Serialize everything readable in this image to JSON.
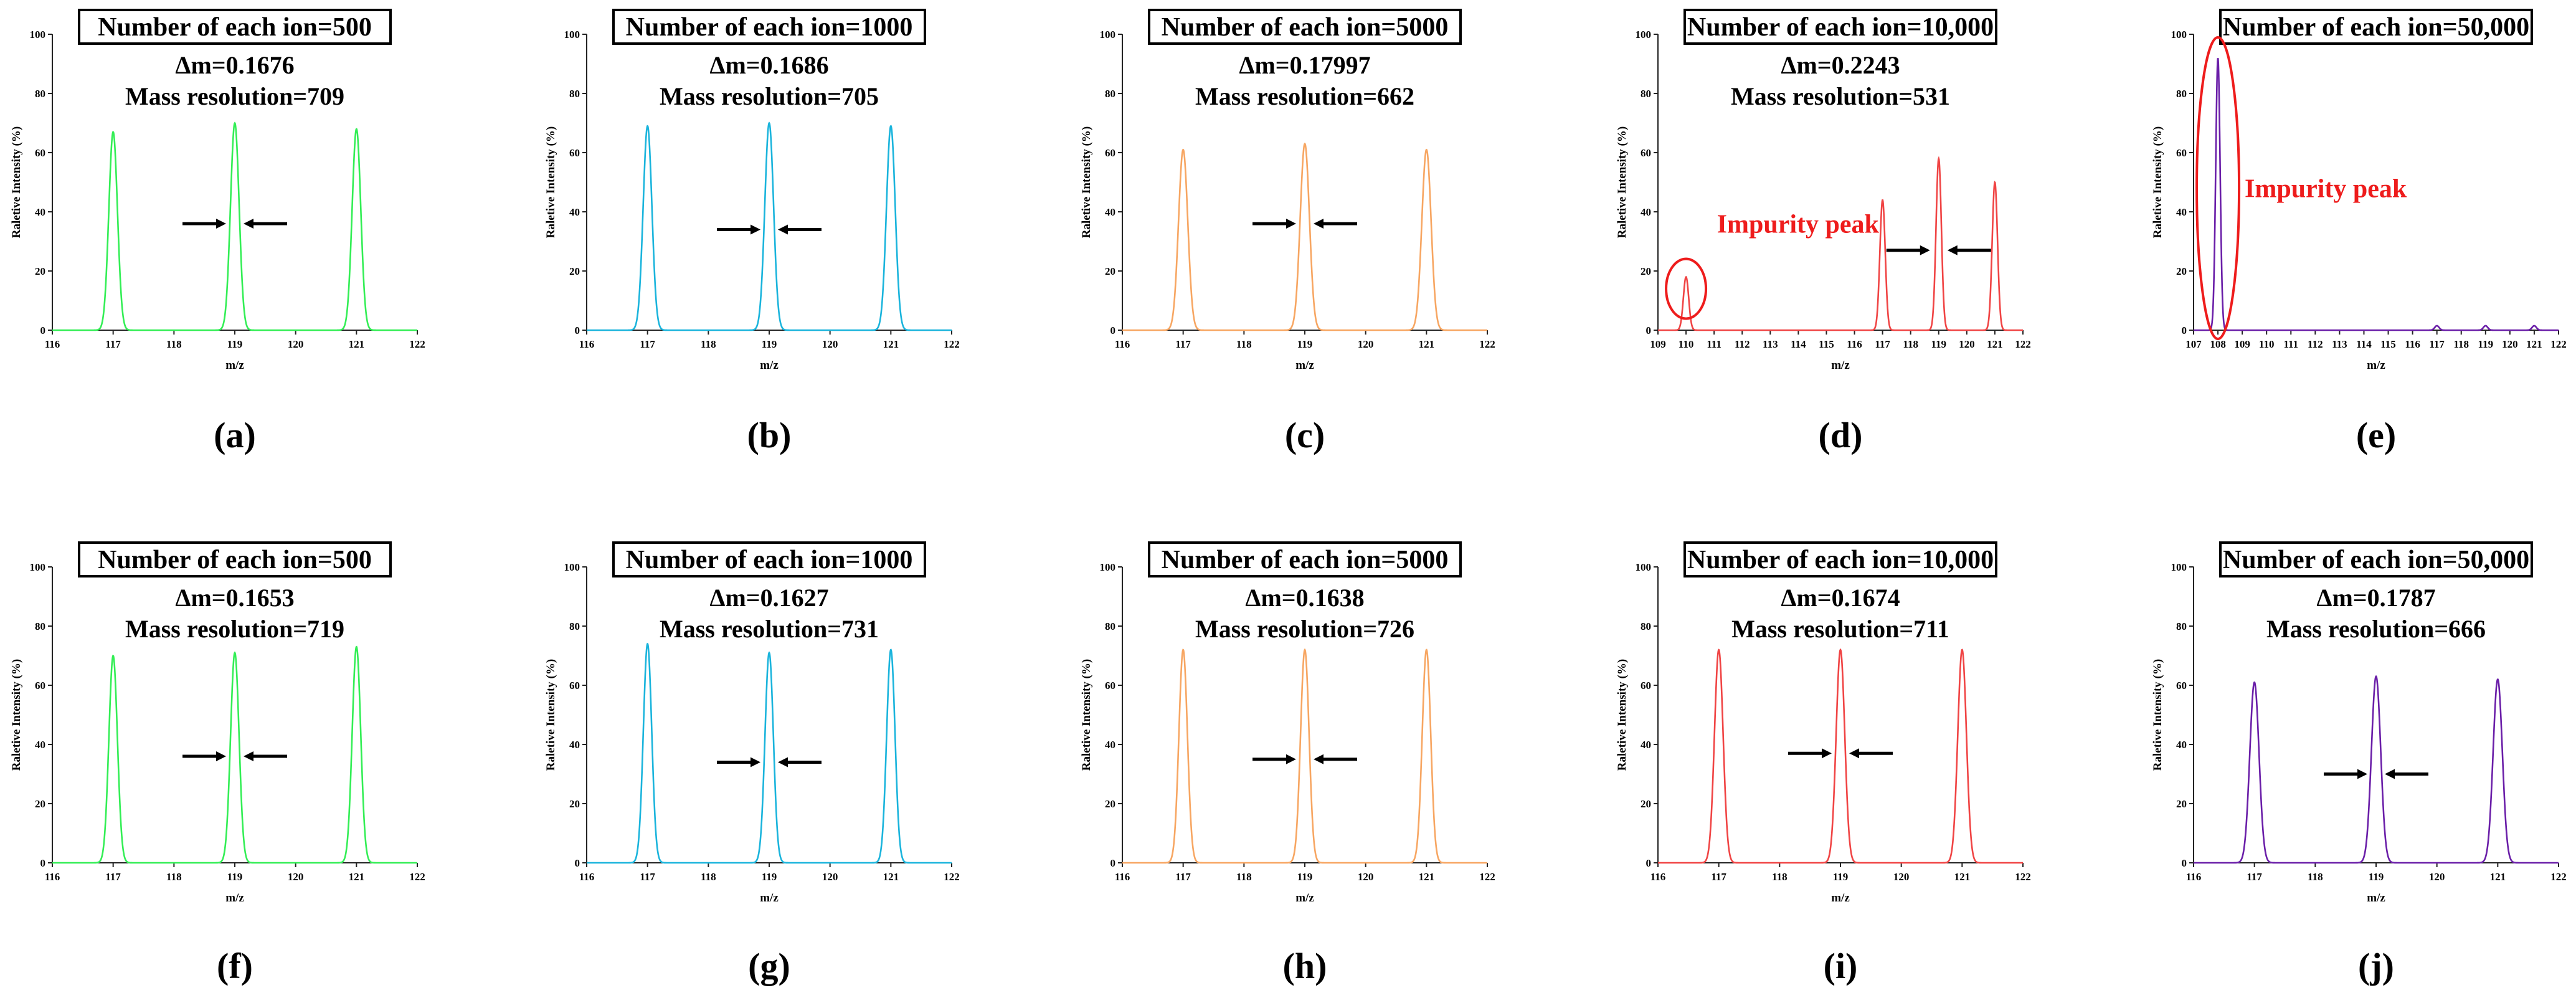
{
  "figure": {
    "colors": {
      "green": "#33ee55",
      "cyan": "#1ab4dc",
      "orange": "#f7a662",
      "red": "#f04444",
      "purple": "#6a1ea8",
      "annotation": "#ee1c1c",
      "axis": "#222222",
      "arrow": "#000000"
    }
  },
  "chart_data": [
    {
      "id": "a",
      "type": "line",
      "label": "(a)",
      "color": "green",
      "box_text": "Number of each ion=500",
      "delta_text": "Δm=0.1676",
      "resolution_text": "Mass resolution=709",
      "xlabel": "m/z",
      "ylabel": "Raletive Intensity (%)",
      "xlim": [
        116,
        122
      ],
      "ylim": [
        0,
        100
      ],
      "xticks": [
        "116",
        "117",
        "118",
        "119",
        "120",
        "121",
        "122"
      ],
      "yticks": [
        "0",
        "20",
        "40",
        "60",
        "80",
        "100"
      ],
      "peaks": [
        {
          "x": 117.0,
          "y": 67
        },
        {
          "x": 119.0,
          "y": 70
        },
        {
          "x": 121.0,
          "y": 68
        }
      ],
      "peak_sigma": 0.071,
      "arrow_x": 119.0,
      "arrow_y": 36
    },
    {
      "id": "b",
      "type": "line",
      "label": "(b)",
      "color": "cyan",
      "box_text": "Number of each ion=1000",
      "delta_text": "Δm=0.1686",
      "resolution_text": "Mass resolution=705",
      "xlabel": "m/z",
      "ylabel": "Raletive Intensity (%)",
      "xlim": [
        116,
        122
      ],
      "ylim": [
        0,
        100
      ],
      "xticks": [
        "116",
        "117",
        "118",
        "119",
        "120",
        "121",
        "122"
      ],
      "yticks": [
        "0",
        "20",
        "40",
        "60",
        "80",
        "100"
      ],
      "peaks": [
        {
          "x": 117.0,
          "y": 69
        },
        {
          "x": 119.0,
          "y": 70
        },
        {
          "x": 121.0,
          "y": 69
        }
      ],
      "peak_sigma": 0.072,
      "arrow_x": 119.0,
      "arrow_y": 34
    },
    {
      "id": "c",
      "type": "line",
      "label": "(c)",
      "color": "orange",
      "box_text": "Number of each ion=5000",
      "delta_text": "Δm=0.17997",
      "resolution_text": "Mass resolution=662",
      "xlabel": "m/z",
      "ylabel": "Raletive Intensity (%)",
      "xlim": [
        116,
        122
      ],
      "ylim": [
        0,
        100
      ],
      "xticks": [
        "116",
        "117",
        "118",
        "119",
        "120",
        "121",
        "122"
      ],
      "yticks": [
        "0",
        "20",
        "40",
        "60",
        "80",
        "100"
      ],
      "peaks": [
        {
          "x": 117.0,
          "y": 61
        },
        {
          "x": 119.0,
          "y": 63
        },
        {
          "x": 121.0,
          "y": 61
        }
      ],
      "peak_sigma": 0.076,
      "arrow_x": 119.0,
      "arrow_y": 36
    },
    {
      "id": "d",
      "type": "line",
      "label": "(d)",
      "color": "red",
      "box_text": "Number of each ion=10,000",
      "delta_text": "Δm=0.2243",
      "resolution_text": "Mass resolution=531",
      "xlabel": "m/z",
      "ylabel": "Raletive Intensity (%)",
      "xlim": [
        109,
        122
      ],
      "ylim": [
        0,
        100
      ],
      "xticks": [
        "109",
        "110",
        "111",
        "112",
        "113",
        "114",
        "115",
        "116",
        "117",
        "118",
        "119",
        "120",
        "121",
        "122"
      ],
      "yticks": [
        "0",
        "20",
        "40",
        "60",
        "80",
        "100"
      ],
      "peaks": [
        {
          "x": 110.0,
          "y": 18
        },
        {
          "x": 117.0,
          "y": 44
        },
        {
          "x": 119.0,
          "y": 58
        },
        {
          "x": 121.0,
          "y": 50
        }
      ],
      "peak_sigma": 0.095,
      "arrow_x": 119.0,
      "arrow_y": 27,
      "impurity_text": "Impurity peak",
      "impurity_x": 110.0,
      "impurity_y": 12
    },
    {
      "id": "e",
      "type": "line",
      "label": "(e)",
      "color": "purple",
      "box_text": "Number of each ion=50,000",
      "delta_text": "",
      "resolution_text": "",
      "xlabel": "m/z",
      "ylabel": "Raletive Intensity (%)",
      "xlim": [
        107,
        122
      ],
      "ylim": [
        0,
        100
      ],
      "xticks": [
        "107",
        "108",
        "109",
        "110",
        "111",
        "112",
        "113",
        "114",
        "115",
        "116",
        "117",
        "118",
        "119",
        "120",
        "121",
        "122"
      ],
      "yticks": [
        "0",
        "20",
        "40",
        "60",
        "80",
        "100"
      ],
      "peaks": [
        {
          "x": 108.0,
          "y": 92
        },
        {
          "x": 117.0,
          "y": 1.5
        },
        {
          "x": 119.0,
          "y": 1.5
        },
        {
          "x": 121.0,
          "y": 1.5
        }
      ],
      "peak_sigma": 0.09,
      "impurity_text": "Impurity peak",
      "impurity_x": 108.0,
      "impurity_y": 47
    },
    {
      "id": "f",
      "type": "line",
      "label": "(f)",
      "color": "green",
      "box_text": "Number of each ion=500",
      "delta_text": "Δm=0.1653",
      "resolution_text": "Mass resolution=719",
      "xlabel": "m/z",
      "ylabel": "Raletive Intensity (%)",
      "xlim": [
        116,
        122
      ],
      "ylim": [
        0,
        100
      ],
      "xticks": [
        "116",
        "117",
        "118",
        "119",
        "120",
        "121",
        "122"
      ],
      "yticks": [
        "0",
        "20",
        "40",
        "60",
        "80",
        "100"
      ],
      "peaks": [
        {
          "x": 117.0,
          "y": 70
        },
        {
          "x": 119.0,
          "y": 71
        },
        {
          "x": 121.0,
          "y": 73
        }
      ],
      "peak_sigma": 0.07,
      "arrow_x": 119.0,
      "arrow_y": 36
    },
    {
      "id": "g",
      "type": "line",
      "label": "(g)",
      "color": "cyan",
      "box_text": "Number of each ion=1000",
      "delta_text": "Δm=0.1627",
      "resolution_text": "Mass resolution=731",
      "xlabel": "m/z",
      "ylabel": "Raletive Intensity (%)",
      "xlim": [
        116,
        122
      ],
      "ylim": [
        0,
        100
      ],
      "xticks": [
        "116",
        "117",
        "118",
        "119",
        "120",
        "121",
        "122"
      ],
      "yticks": [
        "0",
        "20",
        "40",
        "60",
        "80",
        "100"
      ],
      "peaks": [
        {
          "x": 117.0,
          "y": 74
        },
        {
          "x": 119.0,
          "y": 71
        },
        {
          "x": 121.0,
          "y": 72
        }
      ],
      "peak_sigma": 0.069,
      "arrow_x": 119.0,
      "arrow_y": 34
    },
    {
      "id": "h",
      "type": "line",
      "label": "(h)",
      "color": "orange",
      "box_text": "Number of each ion=5000",
      "delta_text": "Δm=0.1638",
      "resolution_text": "Mass resolution=726",
      "xlabel": "m/z",
      "ylabel": "Raletive Intensity (%)",
      "xlim": [
        116,
        122
      ],
      "ylim": [
        0,
        100
      ],
      "xticks": [
        "116",
        "117",
        "118",
        "119",
        "120",
        "121",
        "122"
      ],
      "yticks": [
        "0",
        "20",
        "40",
        "60",
        "80",
        "100"
      ],
      "peaks": [
        {
          "x": 117.0,
          "y": 72
        },
        {
          "x": 119.0,
          "y": 72
        },
        {
          "x": 121.0,
          "y": 72
        }
      ],
      "peak_sigma": 0.07,
      "arrow_x": 119.0,
      "arrow_y": 35
    },
    {
      "id": "i",
      "type": "line",
      "label": "(i)",
      "color": "red",
      "box_text": "Number of each ion=10,000",
      "delta_text": "Δm=0.1674",
      "resolution_text": "Mass resolution=711",
      "xlabel": "m/z",
      "ylabel": "Raletive Intensity (%)",
      "xlim": [
        116,
        122
      ],
      "ylim": [
        0,
        100
      ],
      "xticks": [
        "116",
        "117",
        "118",
        "119",
        "120",
        "121",
        "122"
      ],
      "yticks": [
        "0",
        "20",
        "40",
        "60",
        "80",
        "100"
      ],
      "peaks": [
        {
          "x": 117.0,
          "y": 72
        },
        {
          "x": 119.0,
          "y": 72
        },
        {
          "x": 121.0,
          "y": 72
        }
      ],
      "peak_sigma": 0.071,
      "arrow_x": 119.0,
      "arrow_y": 37
    },
    {
      "id": "j",
      "type": "line",
      "label": "(j)",
      "color": "purple",
      "box_text": "Number of each ion=50,000",
      "delta_text": "Δm=0.1787",
      "resolution_text": "Mass resolution=666",
      "xlabel": "m/z",
      "ylabel": "Raletive Intensity (%)",
      "xlim": [
        116,
        122
      ],
      "ylim": [
        0,
        100
      ],
      "xticks": [
        "116",
        "117",
        "118",
        "119",
        "120",
        "121",
        "122"
      ],
      "yticks": [
        "0",
        "20",
        "40",
        "60",
        "80",
        "100"
      ],
      "peaks": [
        {
          "x": 117.0,
          "y": 61
        },
        {
          "x": 119.0,
          "y": 63
        },
        {
          "x": 121.0,
          "y": 62
        }
      ],
      "peak_sigma": 0.076,
      "arrow_x": 119.0,
      "arrow_y": 30
    }
  ]
}
